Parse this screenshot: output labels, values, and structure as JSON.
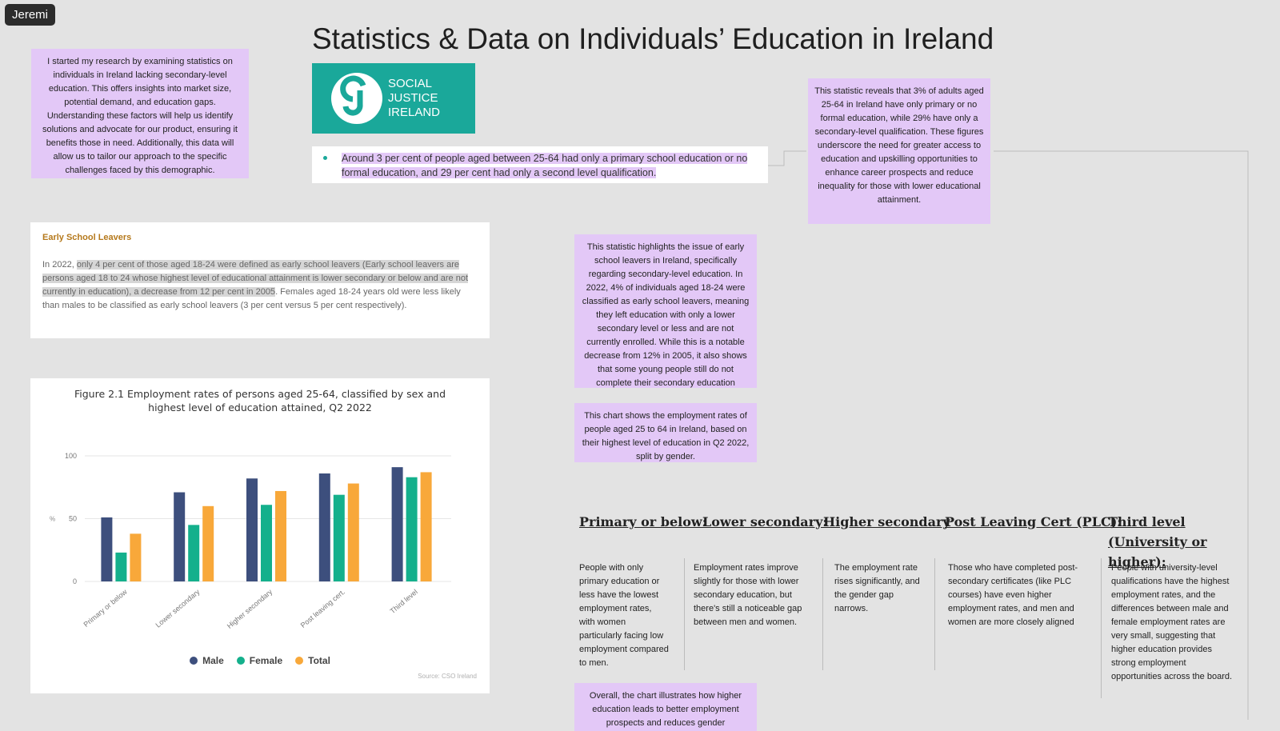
{
  "user": {
    "name": "Jeremi"
  },
  "board": {
    "title": "Statistics & Data on Individuals’ Education in Ireland"
  },
  "notes": {
    "intro": "I started my research by examining statistics on individuals in Ireland lacking secondary-level education. This offers insights into market size, potential demand, and education gaps. Understanding these factors will help us identify solutions and advocate for our product, ensuring it benefits those in need. Additionally, this data will allow us to tailor our approach to the specific challenges faced by this demographic.",
    "primary_stat": "This statistic reveals that 3% of adults aged 25-64 in Ireland have only primary or no formal education, while 29% have only a secondary-level qualification. These figures underscore the need for greater access to education and upskilling opportunities to enhance career prospects and reduce inequality for those with lower educational attainment.",
    "early_leavers": "This statistic highlights the issue of early school leavers in Ireland, specifically regarding secondary-level education. In 2022, 4% of individuals aged 18-24 were classified as early school leavers, meaning they left education with only a lower secondary level or less and are not currently enrolled. While this is a notable decrease from 12% in 2005, it also shows that some young people still do not complete their secondary education",
    "chart_note": "This chart shows the employment rates of people aged 25 to 64 in Ireland, based on their highest level of education in Q2 2022, split by gender.",
    "overall": "Overall, the chart illustrates how higher education leads to better employment prospects and reduces gender"
  },
  "logo": {
    "line1": "SOCIAL",
    "line2": "JUSTICE",
    "line3": "IRELAND"
  },
  "quote": {
    "text": "Around 3 per cent of people aged between 25-64 had only a primary school education or no formal education, and 29 per cent had only a second level qualification."
  },
  "early_school_leavers": {
    "title": "Early School Leavers",
    "prefix": "In 2022, ",
    "highlight": "only 4 per cent of those aged 18-24 were defined as early school leavers (Early school leavers are persons aged 18 to 24 whose highest level of educational attainment is lower secondary or below and are not currently in education), a decrease from 12 per cent in 2005",
    "suffix": ".  Females aged 18-24 years old were less likely than males to be classified as early school leavers (3 per cent versus 5 per cent respectively)."
  },
  "chart_card": {
    "title_line1": "Figure 2.1 Employment rates of persons aged 25-64, classified by sex and",
    "title_line2": "highest level of education attained, Q2 2022",
    "source": "Source: CSO Ireland"
  },
  "chart_data": {
    "type": "bar",
    "title": "Figure 2.1 Employment rates of persons aged 25-64, classified by sex and highest level of education attained, Q2 2022",
    "categories": [
      "Primary or below",
      "Lower secondary",
      "Higher secondary",
      "Post leaving cert.",
      "Third level"
    ],
    "series": [
      {
        "name": "Male",
        "values": [
          51,
          71,
          82,
          86,
          91
        ],
        "color": "#3d4f7d"
      },
      {
        "name": "Female",
        "values": [
          23,
          45,
          61,
          69,
          83
        ],
        "color": "#14b08c"
      },
      {
        "name": "Total",
        "values": [
          38,
          60,
          72,
          78,
          87
        ],
        "color": "#f8a83a"
      }
    ],
    "ylabel": "%",
    "ylim": [
      0,
      100
    ],
    "yticks": [
      0,
      50,
      100
    ],
    "grid": true,
    "legend": "bottom"
  },
  "analysis": {
    "columns": [
      {
        "heading": "Primary or below:",
        "text": "People with only primary education or less have the lowest employment rates, with women particularly facing low employment compared to men."
      },
      {
        "heading": "Lower secondary:",
        "text": "Employment rates improve slightly for those with lower secondary education, but there's still a noticeable gap between men and women."
      },
      {
        "heading": "Higher secondary",
        "text": "The employment rate rises significantly, and the gender gap narrows."
      },
      {
        "heading": "Post Leaving Cert (PLC):",
        "text": "Those who have completed post-secondary certificates (like PLC courses) have even higher employment rates, and men and women are more closely aligned"
      },
      {
        "heading": "Third level (University or higher):",
        "text": "People with university-level qualifications have the highest employment rates, and the differences between male and female employment rates are very small, suggesting that higher education provides strong employment opportunities across the board."
      }
    ]
  }
}
